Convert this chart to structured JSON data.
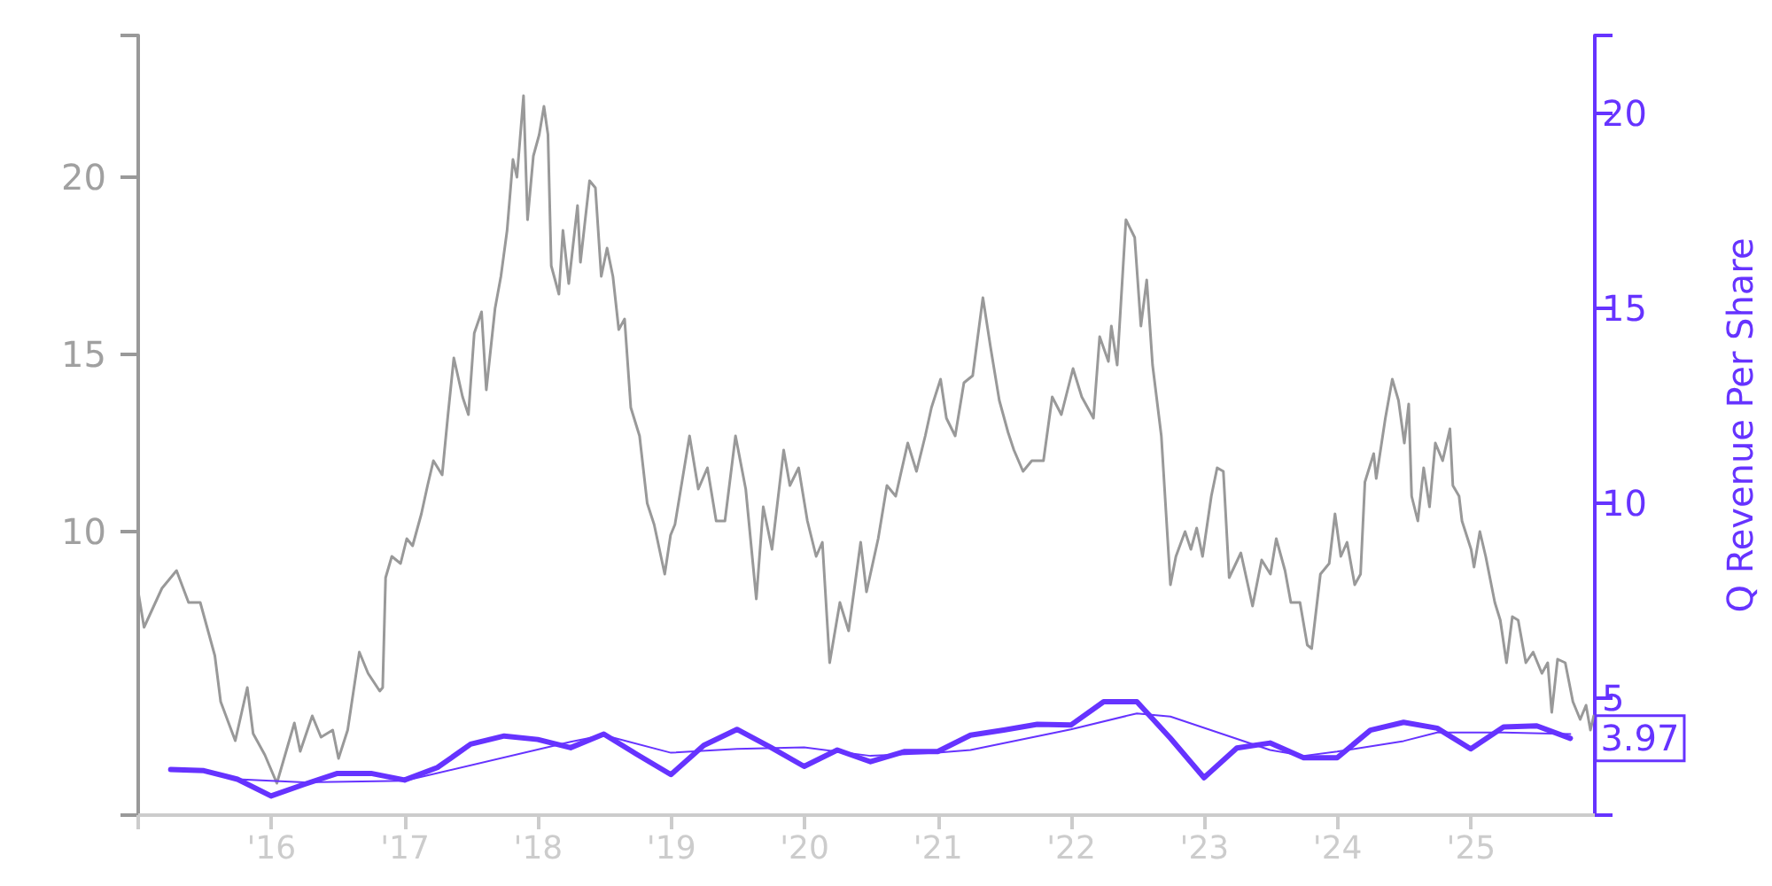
{
  "chart_data": {
    "type": "line",
    "y2label": "Q Revenue Per Share",
    "xlim": [
      "2015-01-01",
      "2025-12-06"
    ],
    "xticks": [
      {
        "value": "2015-01-01",
        "label": null
      },
      {
        "value": "2016-01-01",
        "label": "'16"
      },
      {
        "value": "2017-01-01",
        "label": "'17"
      },
      {
        "value": "2018-01-01",
        "label": "'18"
      },
      {
        "value": "2019-01-01",
        "label": "'19"
      },
      {
        "value": "2020-01-01",
        "label": "'20"
      },
      {
        "value": "2021-01-01",
        "label": "'21"
      },
      {
        "value": "2022-01-01",
        "label": "'22"
      },
      {
        "value": "2023-01-01",
        "label": "'23"
      },
      {
        "value": "2024-01-01",
        "label": "'24"
      },
      {
        "value": "2025-01-01",
        "label": "'25"
      }
    ],
    "ylim": [
      2,
      24
    ],
    "yticks": [
      {
        "value": 2,
        "label": null
      },
      10,
      15,
      20,
      {
        "value": 24,
        "label": null
      }
    ],
    "y2lim": [
      2,
      22
    ],
    "y2ticks": [
      {
        "value": 2,
        "label": null
      },
      5,
      10,
      15,
      20,
      {
        "value": 22,
        "label": null
      }
    ],
    "series": [
      {
        "color": "#999999",
        "x": [
          "2015-01-01",
          "2015-01-17",
          "2015-03-07",
          "2015-04-16",
          "2015-05-19",
          "2015-06-20",
          "2015-07-30",
          "2015-08-15",
          "2015-09-24",
          "2015-10-27",
          "2015-11-12",
          "2015-12-14",
          "2016-01-16",
          "2016-03-04",
          "2016-03-20",
          "2016-04-22",
          "2016-05-16",
          "2016-06-17",
          "2016-07-03",
          "2016-07-28",
          "2016-08-29",
          "2016-09-22",
          "2016-10-24",
          "2016-11-01",
          "2016-11-09",
          "2016-11-26",
          "2016-12-20",
          "2017-01-06",
          "2017-01-22",
          "2017-02-15",
          "2017-03-04",
          "2017-03-20",
          "2017-04-13",
          "2017-04-29",
          "2017-05-15",
          "2017-06-08",
          "2017-06-24",
          "2017-07-10",
          "2017-07-30",
          "2017-08-12",
          "2017-09-05",
          "2017-09-21",
          "2017-10-08",
          "2017-10-24",
          "2017-11-04",
          "2017-11-22",
          "2017-12-03",
          "2017-12-19",
          "2018-01-04",
          "2018-01-17",
          "2018-01-28",
          "2018-02-06",
          "2018-02-27",
          "2018-03-10",
          "2018-03-26",
          "2018-04-19",
          "2018-04-27",
          "2018-05-22",
          "2018-06-07",
          "2018-06-23",
          "2018-07-09",
          "2018-07-25",
          "2018-08-10",
          "2018-08-26",
          "2018-09-12",
          "2018-10-06",
          "2018-10-27",
          "2018-11-15",
          "2018-12-14",
          "2018-12-30",
          "2019-01-11",
          "2019-02-20",
          "2019-03-16",
          "2019-04-10",
          "2019-05-04",
          "2019-05-28",
          "2019-06-26",
          "2019-07-24",
          "2019-08-22",
          "2019-09-10",
          "2019-10-04",
          "2019-11-05",
          "2019-11-22",
          "2019-12-16",
          "2020-01-09",
          "2020-02-02",
          "2020-02-19",
          "2020-03-10",
          "2020-04-07",
          "2020-05-01",
          "2020-06-03",
          "2020-06-19",
          "2020-07-21",
          "2020-08-14",
          "2020-09-07",
          "2020-10-10",
          "2020-11-03",
          "2020-11-27",
          "2020-12-14",
          "2021-01-08",
          "2021-01-24",
          "2021-02-17",
          "2021-03-13",
          "2021-04-06",
          "2021-05-04",
          "2021-05-25",
          "2021-06-18",
          "2021-07-12",
          "2021-07-28",
          "2021-08-22",
          "2021-09-15",
          "2021-10-17",
          "2021-11-10",
          "2021-12-05",
          "2022-01-06",
          "2022-01-30",
          "2022-03-03",
          "2022-03-20",
          "2022-04-13",
          "2022-04-21",
          "2022-05-07",
          "2022-05-31",
          "2022-06-24",
          "2022-07-11",
          "2022-07-27",
          "2022-08-12",
          "2022-09-05",
          "2022-09-30",
          "2022-10-15",
          "2022-11-09",
          "2022-11-25",
          "2022-12-11",
          "2022-12-27",
          "2023-01-20",
          "2023-02-05",
          "2023-02-22",
          "2023-03-10",
          "2023-04-11",
          "2023-05-13",
          "2023-06-07",
          "2023-07-01",
          "2023-07-17",
          "2023-08-10",
          "2023-08-26",
          "2023-09-20",
          "2023-10-10",
          "2023-10-22",
          "2023-11-15",
          "2023-12-09",
          "2023-12-25",
          "2024-01-10",
          "2024-01-27",
          "2024-02-17",
          "2024-03-04",
          "2024-03-16",
          "2024-04-09",
          "2024-04-16",
          "2024-05-11",
          "2024-05-30",
          "2024-06-16",
          "2024-07-02",
          "2024-07-14",
          "2024-07-22",
          "2024-08-08",
          "2024-08-24",
          "2024-09-09",
          "2024-09-25",
          "2024-10-15",
          "2024-11-04",
          "2024-11-12",
          "2024-11-29",
          "2024-12-07",
          "2025-01-01",
          "2025-01-09",
          "2025-01-25",
          "2025-02-10",
          "2025-03-07",
          "2025-03-22",
          "2025-04-08",
          "2025-04-24",
          "2025-05-10",
          "2025-05-31",
          "2025-06-20",
          "2025-07-14",
          "2025-07-30",
          "2025-08-10",
          "2025-08-26",
          "2025-09-16",
          "2025-10-07",
          "2025-10-27",
          "2025-11-12",
          "2025-11-24",
          "2025-12-03"
        ],
        "values": [
          8.3,
          7.3,
          8.4,
          8.9,
          8.0,
          8.0,
          6.5,
          5.2,
          4.1,
          5.6,
          4.3,
          3.7,
          2.9,
          4.6,
          3.8,
          4.8,
          4.2,
          4.4,
          3.6,
          4.4,
          6.6,
          6.0,
          5.5,
          5.6,
          8.7,
          9.3,
          9.1,
          9.8,
          9.6,
          10.5,
          11.3,
          12.0,
          11.6,
          13.3,
          14.9,
          13.8,
          13.3,
          15.6,
          16.2,
          14.0,
          16.3,
          17.2,
          18.5,
          20.5,
          20.0,
          22.3,
          18.8,
          20.6,
          21.2,
          22.0,
          21.2,
          17.5,
          16.7,
          18.5,
          17.0,
          19.2,
          17.6,
          19.9,
          19.7,
          17.2,
          18.0,
          17.2,
          15.7,
          16.0,
          13.5,
          12.7,
          10.8,
          10.2,
          8.8,
          9.9,
          10.2,
          12.7,
          11.2,
          11.8,
          10.3,
          10.3,
          12.7,
          11.2,
          8.1,
          10.7,
          9.5,
          12.3,
          11.3,
          11.8,
          10.3,
          9.3,
          9.7,
          6.3,
          8.0,
          7.2,
          9.7,
          8.3,
          9.8,
          11.3,
          11.0,
          12.5,
          11.7,
          12.7,
          13.5,
          14.3,
          13.2,
          12.7,
          14.2,
          14.4,
          16.6,
          15.2,
          13.7,
          12.8,
          12.3,
          11.7,
          12.0,
          12.0,
          13.8,
          13.3,
          14.6,
          13.8,
          13.2,
          15.5,
          14.8,
          15.8,
          14.7,
          18.8,
          18.3,
          15.8,
          17.1,
          14.7,
          12.7,
          8.5,
          9.3,
          10.0,
          9.5,
          10.1,
          9.3,
          11.0,
          11.8,
          11.7,
          8.7,
          9.4,
          7.9,
          9.2,
          8.8,
          9.8,
          8.9,
          8.0,
          8.0,
          6.8,
          6.7,
          8.8,
          9.1,
          10.5,
          9.3,
          9.7,
          8.5,
          8.8,
          11.4,
          12.2,
          11.5,
          13.2,
          14.3,
          13.7,
          12.5,
          13.6,
          11.0,
          10.3,
          11.8,
          10.7,
          12.5,
          12.0,
          12.9,
          11.3,
          11.0,
          10.3,
          9.5,
          9.0,
          10.0,
          9.3,
          8.0,
          7.5,
          6.3,
          7.6,
          7.5,
          6.3,
          6.6,
          6.0,
          6.3,
          4.9,
          6.4,
          6.3,
          5.2,
          4.7,
          5.1,
          4.4,
          4.8
        ]
      },
      {
        "color": "#6633ff",
        "axis": "y2",
        "x": [
          "2015-03-31",
          "2015-06-30",
          "2015-09-30",
          "2015-12-31",
          "2016-03-31",
          "2016-06-30",
          "2016-09-30",
          "2016-12-31",
          "2017-03-31",
          "2017-06-30",
          "2017-09-30",
          "2017-12-31",
          "2018-03-31",
          "2018-06-30",
          "2018-09-30",
          "2018-12-31",
          "2019-03-31",
          "2019-06-30",
          "2019-09-30",
          "2019-12-31",
          "2020-03-31",
          "2020-06-30",
          "2020-09-30",
          "2020-12-31",
          "2021-03-31",
          "2021-06-30",
          "2021-09-30",
          "2021-12-31",
          "2022-03-31",
          "2022-06-30",
          "2022-09-30",
          "2022-12-31",
          "2023-03-31",
          "2023-06-30",
          "2023-09-30",
          "2023-12-31",
          "2024-03-31",
          "2024-06-30",
          "2024-09-30",
          "2024-12-31",
          "2025-03-31",
          "2025-06-30",
          "2025-09-30"
        ],
        "values": [
          3.17,
          3.14,
          2.92,
          2.49,
          2.79,
          3.07,
          3.07,
          2.9,
          3.22,
          3.82,
          4.03,
          3.94,
          3.73,
          4.08,
          3.55,
          3.04,
          3.79,
          4.2,
          3.74,
          3.25,
          3.67,
          3.37,
          3.63,
          3.63,
          4.05,
          4.18,
          4.33,
          4.31,
          4.91,
          4.91,
          3.97,
          2.96,
          3.72,
          3.85,
          3.47,
          3.47,
          4.18,
          4.38,
          4.23,
          3.7,
          4.26,
          4.29,
          3.97
        ],
        "value_labels": [
          null,
          null,
          null,
          null,
          null,
          null,
          null,
          null,
          null,
          null,
          null,
          null,
          null,
          null,
          null,
          null,
          null,
          null,
          null,
          null,
          null,
          null,
          null,
          null,
          null,
          null,
          null,
          null,
          null,
          null,
          null,
          null,
          null,
          null,
          null,
          null,
          null,
          null,
          null,
          null,
          null,
          null,
          "3.97"
        ]
      },
      {
        "color": "#6633ff",
        "axis": "y2",
        "x": [
          "2015-03-31",
          "2015-06-30",
          "2015-09-30",
          "2016-03-31",
          "2016-12-31",
          "2018-03-31",
          "2018-06-30",
          "2018-12-31",
          "2019-06-30",
          "2019-12-31",
          "2020-06-30",
          "2020-12-31",
          "2021-03-31",
          "2021-12-31",
          "2022-06-30",
          "2022-09-30",
          "2023-06-30",
          "2023-09-30",
          "2023-12-31",
          "2024-06-30",
          "2024-09-30",
          "2025-03-31",
          "2025-09-30"
        ],
        "values": [
          3.17,
          3.14,
          2.92,
          2.84,
          2.88,
          3.88,
          4.05,
          3.6,
          3.7,
          3.74,
          3.52,
          3.6,
          3.67,
          4.2,
          4.61,
          4.53,
          3.67,
          3.52,
          3.63,
          3.9,
          4.12,
          4.12,
          4.08
        ]
      }
    ]
  }
}
